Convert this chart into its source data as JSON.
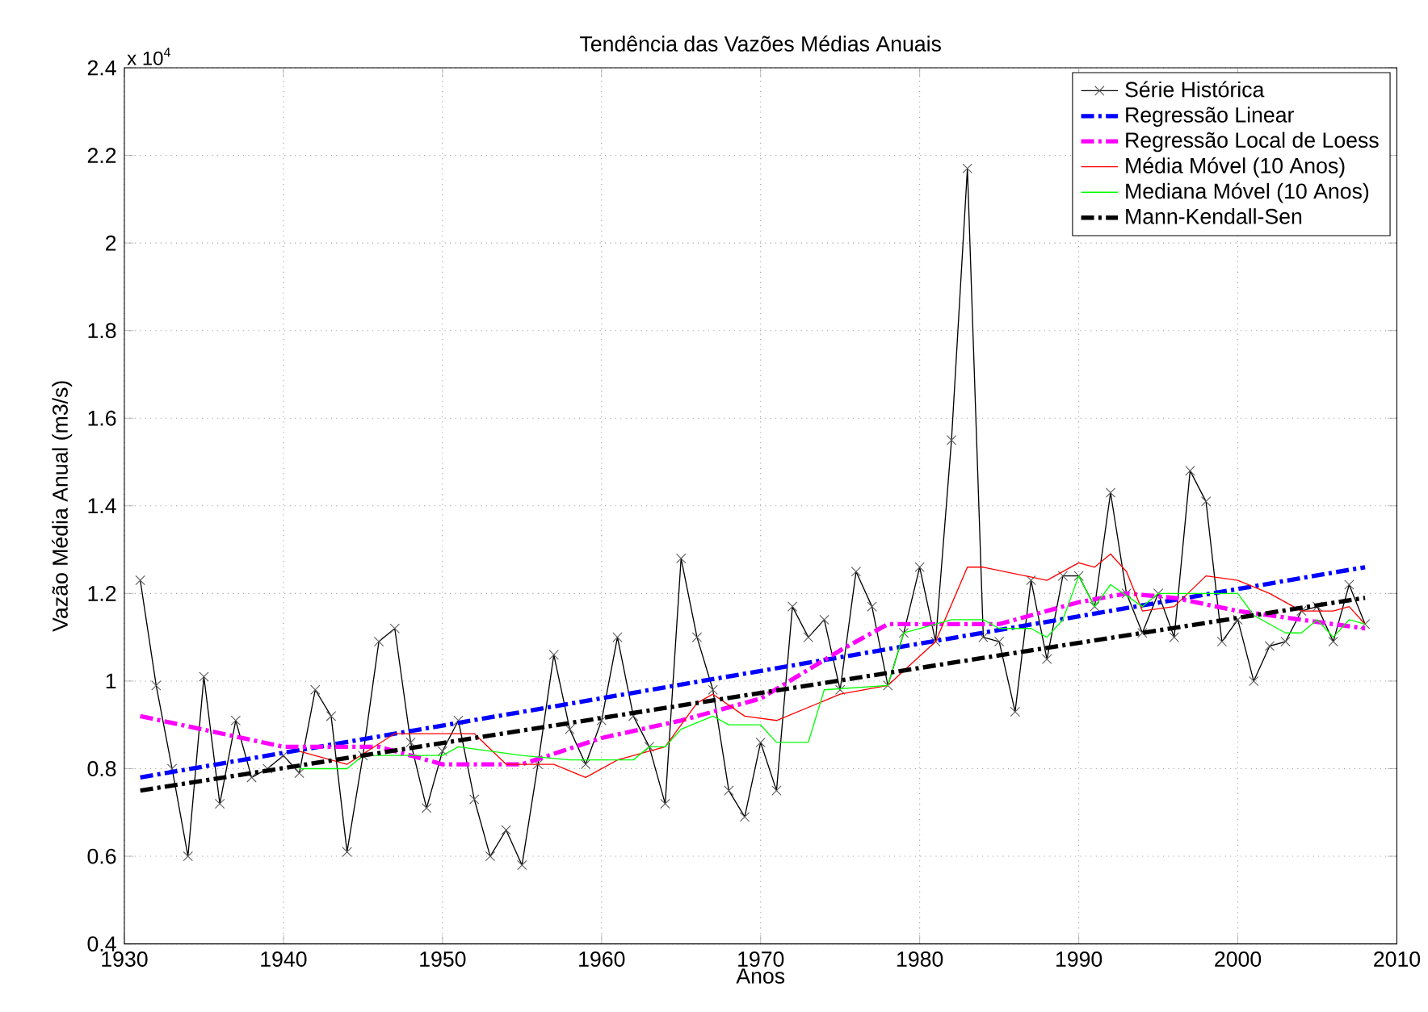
{
  "chart_data": {
    "type": "line",
    "title": "Tendência das Vazões Médias Anuais",
    "xlabel": "Anos",
    "ylabel": "Vazão Média Anual (m3/s)",
    "annotations": [
      "x 10$^{4}$"
    ],
    "x": [
      1931,
      1932,
      1933,
      1934,
      1935,
      1936,
      1937,
      1938,
      1939,
      1940,
      1941,
      1942,
      1943,
      1944,
      1945,
      1946,
      1947,
      1948,
      1949,
      1950,
      1951,
      1952,
      1953,
      1954,
      1955,
      1956,
      1957,
      1958,
      1959,
      1960,
      1961,
      1962,
      1963,
      1964,
      1965,
      1966,
      1967,
      1968,
      1969,
      1970,
      1971,
      1972,
      1973,
      1974,
      1975,
      1976,
      1977,
      1978,
      1979,
      1980,
      1981,
      1982,
      1983,
      1984,
      1985,
      1986,
      1987,
      1988,
      1989,
      1990,
      1991,
      1992,
      1993,
      1994,
      1995,
      1996,
      1997,
      1998,
      1999,
      2000,
      2001,
      2002,
      2003,
      2004,
      2005,
      2006,
      2007,
      2008
    ],
    "series": [
      {
        "name": "Série Histórica",
        "color": "#000000",
        "marker": "cross",
        "line_style": "solid",
        "values": [
          1.23,
          0.99,
          0.8,
          0.6,
          1.01,
          0.72,
          0.91,
          0.78,
          0.8,
          0.83,
          0.79,
          0.98,
          0.92,
          0.61,
          0.83,
          1.09,
          1.12,
          0.86,
          0.71,
          0.84,
          0.91,
          0.73,
          0.6,
          0.66,
          0.58,
          0.81,
          1.06,
          0.89,
          0.81,
          0.91,
          1.1,
          0.92,
          0.85,
          0.72,
          1.28,
          1.1,
          0.98,
          0.75,
          0.69,
          0.86,
          0.75,
          1.17,
          1.1,
          1.14,
          0.98,
          1.25,
          1.17,
          0.99,
          1.11,
          1.26,
          1.09,
          1.55,
          2.17,
          1.1,
          1.09,
          0.93,
          1.23,
          1.05,
          1.24,
          1.24,
          1.17,
          1.43,
          1.2,
          1.11,
          1.2,
          1.1,
          1.48,
          1.41,
          1.09,
          1.14,
          1.0,
          1.08,
          1.09,
          1.16,
          1.17,
          1.09,
          1.22,
          1.13
        ]
      },
      {
        "name": "Regressão Linear",
        "color": "#0000ff",
        "marker": "none",
        "line_style": "dashdot",
        "x": [
          1931,
          2008
        ],
        "values": [
          0.78,
          1.26
        ]
      },
      {
        "name": "Regressão Local de Loess",
        "color": "#ff00ff",
        "marker": "none",
        "line_style": "dashdot",
        "x": [
          1931,
          1940,
          1946,
          1950,
          1955,
          1960,
          1965,
          1970,
          1975,
          1978,
          1980,
          1985,
          1990,
          1993,
          1996,
          2000,
          2004,
          2008
        ],
        "values": [
          0.92,
          0.85,
          0.85,
          0.81,
          0.81,
          0.87,
          0.91,
          0.96,
          1.07,
          1.13,
          1.13,
          1.13,
          1.18,
          1.2,
          1.19,
          1.16,
          1.14,
          1.12
        ]
      },
      {
        "name": "Média Móvel (10 Anos)",
        "color": "#ff0000",
        "marker": "none",
        "line_style": "solid",
        "x": [
          1941,
          1944,
          1947,
          1952,
          1954,
          1957,
          1959,
          1961,
          1964,
          1966,
          1967,
          1969,
          1971,
          1975,
          1978,
          1981,
          1983,
          1984,
          1988,
          1990,
          1991,
          1992,
          1993,
          1994,
          1996,
          1998,
          2000,
          2002,
          2004,
          2006,
          2007,
          2008
        ],
        "values": [
          0.84,
          0.81,
          0.88,
          0.88,
          0.81,
          0.81,
          0.78,
          0.82,
          0.85,
          0.95,
          0.97,
          0.92,
          0.91,
          0.97,
          0.99,
          1.09,
          1.26,
          1.26,
          1.23,
          1.27,
          1.26,
          1.29,
          1.25,
          1.16,
          1.17,
          1.24,
          1.23,
          1.2,
          1.16,
          1.16,
          1.17,
          1.13
        ]
      },
      {
        "name": "Mediana Móvel (10 Anos)",
        "color": "#00ff00",
        "marker": "none",
        "line_style": "solid",
        "x": [
          1941,
          1944,
          1945,
          1950,
          1951,
          1955,
          1958,
          1962,
          1963,
          1964,
          1965,
          1967,
          1968,
          1970,
          1971,
          1973,
          1974,
          1978,
          1979,
          1980,
          1982,
          1984,
          1985,
          1987,
          1988,
          1989,
          1990,
          1991,
          1992,
          1994,
          1995,
          2000,
          2001,
          2003,
          2004,
          2005,
          2006,
          2007,
          2008
        ],
        "values": [
          0.8,
          0.8,
          0.83,
          0.83,
          0.85,
          0.83,
          0.82,
          0.82,
          0.85,
          0.85,
          0.89,
          0.92,
          0.9,
          0.9,
          0.86,
          0.86,
          0.98,
          0.99,
          1.11,
          1.12,
          1.14,
          1.14,
          1.12,
          1.12,
          1.1,
          1.14,
          1.24,
          1.17,
          1.22,
          1.17,
          1.2,
          1.2,
          1.15,
          1.11,
          1.11,
          1.14,
          1.1,
          1.14,
          1.13
        ]
      },
      {
        "name": "Mann-Kendall-Sen",
        "color": "#000000",
        "marker": "none",
        "line_style": "dashdot",
        "x": [
          1931,
          2008
        ],
        "values": [
          0.75,
          1.19
        ]
      }
    ],
    "xlim": [
      1930,
      2010
    ],
    "xticks": [
      1930,
      1940,
      1950,
      1960,
      1970,
      1980,
      1990,
      2000,
      2010
    ],
    "ylim": [
      0.4,
      2.4
    ],
    "yticks": [
      0.4,
      0.6,
      0.8,
      1,
      1.2,
      1.4,
      1.6,
      1.8,
      2,
      2.2,
      2.4
    ],
    "grid": true,
    "legend": "top right"
  }
}
